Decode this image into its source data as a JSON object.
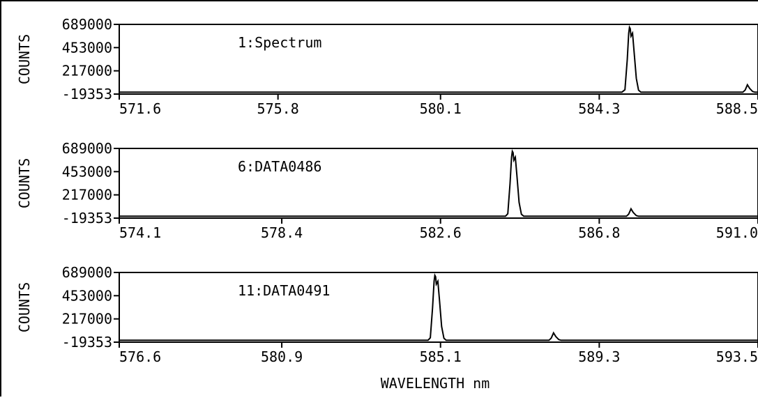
{
  "chart_data": [
    {
      "type": "line",
      "ylabel": "COUNTS",
      "annotation": "1:Spectrum",
      "xlim": [
        571.6,
        588.5
      ],
      "ylim": [
        -19353,
        689000
      ],
      "xticks": [
        "571.6",
        "575.8",
        "580.1",
        "584.3",
        "588.5"
      ],
      "xtick_values": [
        571.6,
        575.8,
        580.1,
        584.3,
        588.5
      ],
      "yticks": [
        "689000",
        "453000",
        "217000",
        "-19353"
      ],
      "ytick_values": [
        689000,
        453000,
        217000,
        -19353
      ],
      "series": [
        {
          "color": "#000000",
          "points": [
            [
              571.6,
              0
            ],
            [
              584.9,
              0
            ],
            [
              584.98,
              25000
            ],
            [
              585.04,
              330000
            ],
            [
              585.08,
              600000
            ],
            [
              585.1,
              660000
            ],
            [
              585.12,
              645000
            ],
            [
              585.14,
              570000
            ],
            [
              585.18,
              600000
            ],
            [
              585.22,
              420000
            ],
            [
              585.28,
              140000
            ],
            [
              585.34,
              20000
            ],
            [
              585.4,
              0
            ],
            [
              588.1,
              0
            ],
            [
              588.16,
              22000
            ],
            [
              588.22,
              75000
            ],
            [
              588.28,
              38000
            ],
            [
              588.36,
              6000
            ],
            [
              588.42,
              0
            ],
            [
              588.5,
              0
            ]
          ]
        }
      ]
    },
    {
      "type": "line",
      "ylabel": "COUNTS",
      "annotation": "6:DATA0486",
      "xlim": [
        574.1,
        591.0
      ],
      "ylim": [
        -19353,
        689000
      ],
      "xticks": [
        "574.1",
        "578.4",
        "582.6",
        "586.8",
        "591.0"
      ],
      "xtick_values": [
        574.1,
        578.4,
        582.6,
        586.8,
        591.0
      ],
      "yticks": [
        "689000",
        "453000",
        "217000",
        "-19353"
      ],
      "ytick_values": [
        689000,
        453000,
        217000,
        -19353
      ],
      "series": [
        {
          "color": "#000000",
          "points": [
            [
              574.1,
              0
            ],
            [
              584.32,
              0
            ],
            [
              584.38,
              25000
            ],
            [
              584.44,
              330000
            ],
            [
              584.48,
              600000
            ],
            [
              584.5,
              660000
            ],
            [
              584.52,
              645000
            ],
            [
              584.54,
              570000
            ],
            [
              584.58,
              600000
            ],
            [
              584.62,
              420000
            ],
            [
              584.68,
              140000
            ],
            [
              584.74,
              20000
            ],
            [
              584.8,
              0
            ],
            [
              587.52,
              0
            ],
            [
              587.58,
              22000
            ],
            [
              587.64,
              75000
            ],
            [
              587.7,
              38000
            ],
            [
              587.78,
              6000
            ],
            [
              587.84,
              0
            ],
            [
              591.0,
              0
            ]
          ]
        }
      ]
    },
    {
      "type": "line",
      "ylabel": "COUNTS",
      "annotation": "11:DATA0491",
      "xlim": [
        576.6,
        593.5
      ],
      "ylim": [
        -19353,
        689000
      ],
      "xticks": [
        "576.6",
        "580.9",
        "585.1",
        "589.3",
        "593.5"
      ],
      "xtick_values": [
        576.6,
        580.9,
        585.1,
        589.3,
        593.5
      ],
      "yticks": [
        "689000",
        "453000",
        "217000",
        "-19353"
      ],
      "ytick_values": [
        689000,
        453000,
        217000,
        -19353
      ],
      "series": [
        {
          "color": "#000000",
          "points": [
            [
              576.6,
              0
            ],
            [
              584.77,
              0
            ],
            [
              584.83,
              25000
            ],
            [
              584.89,
              330000
            ],
            [
              584.93,
              600000
            ],
            [
              584.95,
              660000
            ],
            [
              584.97,
              645000
            ],
            [
              584.99,
              570000
            ],
            [
              585.03,
              600000
            ],
            [
              585.07,
              420000
            ],
            [
              585.13,
              140000
            ],
            [
              585.19,
              20000
            ],
            [
              585.25,
              0
            ],
            [
              587.97,
              0
            ],
            [
              588.03,
              22000
            ],
            [
              588.09,
              75000
            ],
            [
              588.15,
              38000
            ],
            [
              588.23,
              6000
            ],
            [
              588.29,
              0
            ],
            [
              593.5,
              0
            ]
          ]
        }
      ]
    }
  ],
  "xlabel": "WAVELENGTH nm"
}
